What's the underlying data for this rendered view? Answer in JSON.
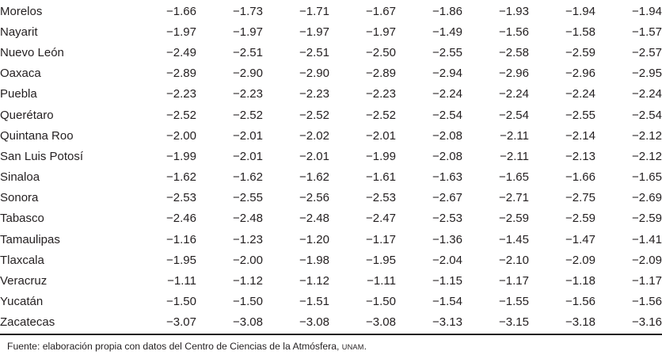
{
  "table": {
    "rows": [
      {
        "state": "Morelos",
        "values": [
          "−1.66",
          "−1.73",
          "−1.71",
          "−1.67",
          "−1.86",
          "−1.93",
          "−1.94",
          "−1.94"
        ]
      },
      {
        "state": "Nayarit",
        "values": [
          "−1.97",
          "−1.97",
          "−1.97",
          "−1.97",
          "−1.49",
          "−1.56",
          "−1.58",
          "−1.57"
        ]
      },
      {
        "state": "Nuevo León",
        "values": [
          "−2.49",
          "−2.51",
          "−2.51",
          "−2.50",
          "−2.55",
          "−2.58",
          "−2.59",
          "−2.57"
        ]
      },
      {
        "state": "Oaxaca",
        "values": [
          "−2.89",
          "−2.90",
          "−2.90",
          "−2.89",
          "−2.94",
          "−2.96",
          "−2.96",
          "−2.95"
        ]
      },
      {
        "state": "Puebla",
        "values": [
          "−2.23",
          "−2.23",
          "−2.23",
          "−2.23",
          "−2.24",
          "−2.24",
          "−2.24",
          "−2.24"
        ]
      },
      {
        "state": "Querétaro",
        "values": [
          "−2.52",
          "−2.52",
          "−2.52",
          "−2.52",
          "−2.54",
          "−2.54",
          "−2.55",
          "−2.54"
        ]
      },
      {
        "state": "Quintana Roo",
        "values": [
          "−2.00",
          "−2.01",
          "−2.02",
          "−2.01",
          "−2.08",
          "−2.11",
          "−2.14",
          "−2.12"
        ]
      },
      {
        "state": "San Luis Potosí",
        "values": [
          "−1.99",
          "−2.01",
          "−2.01",
          "−1.99",
          "−2.08",
          "−2.11",
          "−2.13",
          "−2.12"
        ]
      },
      {
        "state": "Sinaloa",
        "values": [
          "−1.62",
          "−1.62",
          "−1.62",
          "−1.61",
          "−1.63",
          "−1.65",
          "−1.66",
          "−1.65"
        ]
      },
      {
        "state": "Sonora",
        "values": [
          "−2.53",
          "−2.55",
          "−2.56",
          "−2.53",
          "−2.67",
          "−2.71",
          "−2.75",
          "−2.69"
        ]
      },
      {
        "state": "Tabasco",
        "values": [
          "−2.46",
          "−2.48",
          "−2.48",
          "−2.47",
          "−2.53",
          "−2.59",
          "−2.59",
          "−2.59"
        ]
      },
      {
        "state": "Tamaulipas",
        "values": [
          "−1.16",
          "−1.23",
          "−1.20",
          "−1.17",
          "−1.36",
          "−1.45",
          "−1.47",
          "−1.41"
        ]
      },
      {
        "state": "Tlaxcala",
        "values": [
          "−1.95",
          "−2.00",
          "−1.98",
          "−1.95",
          "−2.04",
          "−2.10",
          "−2.09",
          "−2.09"
        ]
      },
      {
        "state": "Veracruz",
        "values": [
          "−1.11",
          "−1.12",
          "−1.12",
          "−1.11",
          "−1.15",
          "−1.17",
          "−1.18",
          "−1.17"
        ]
      },
      {
        "state": "Yucatán",
        "values": [
          "−1.50",
          "−1.50",
          "−1.51",
          "−1.50",
          "−1.54",
          "−1.55",
          "−1.56",
          "−1.56"
        ]
      },
      {
        "state": "Zacatecas",
        "values": [
          "−3.07",
          "−3.08",
          "−3.08",
          "−3.08",
          "−3.13",
          "−3.15",
          "−3.18",
          "−3.16"
        ]
      }
    ]
  },
  "footer": {
    "text_before_unam": "Fuente: elaboración propia con datos del Centro de Ciencias de la Atmósfera, ",
    "unam": "UNAM",
    "text_after_unam": "."
  },
  "colors": {
    "text": "#231f20",
    "rule": "#231f20",
    "background": "#ffffff"
  }
}
